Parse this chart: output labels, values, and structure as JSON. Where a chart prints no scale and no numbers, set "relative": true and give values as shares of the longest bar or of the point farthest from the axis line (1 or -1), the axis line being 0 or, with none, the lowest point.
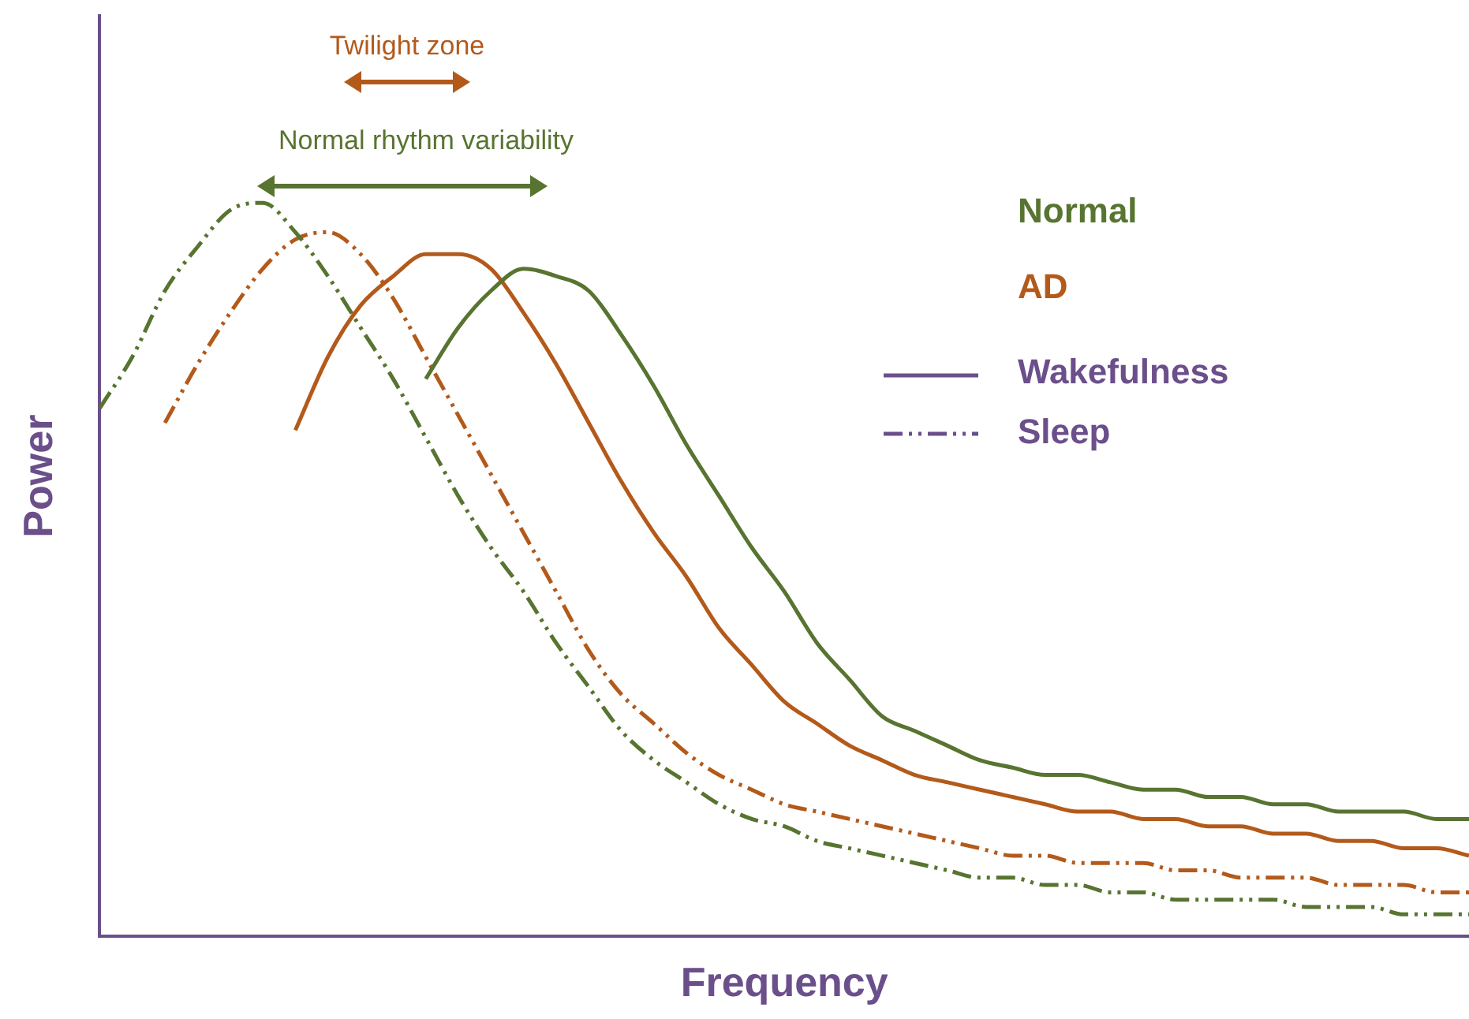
{
  "chart_data": {
    "type": "line",
    "relative": true,
    "xlabel": "Frequency",
    "ylabel": "Power",
    "legend": false,
    "grid": false,
    "marker": "none",
    "categories": [
      null,
      null,
      null,
      null,
      null,
      null,
      null,
      null,
      null,
      null,
      null,
      null,
      null,
      null,
      null,
      null,
      null,
      null,
      null,
      null,
      null,
      null,
      null,
      null,
      null,
      null,
      null,
      null,
      null,
      null,
      null,
      null,
      null,
      null,
      null,
      null,
      null,
      null,
      null,
      null,
      null,
      null,
      null
    ],
    "series": [
      {
        "color": "#577430",
        "line_style": "solid",
        "values": [
          null,
          null,
          null,
          null,
          null,
          null,
          null,
          null,
          null,
          null,
          0.76,
          0.83,
          0.88,
          0.91,
          0.9,
          0.88,
          0.82,
          0.75,
          0.67,
          0.6,
          0.53,
          0.47,
          0.4,
          0.35,
          0.3,
          0.28,
          0.26,
          0.24,
          0.23,
          0.22,
          0.22,
          0.21,
          0.2,
          0.2,
          0.19,
          0.19,
          0.18,
          0.18,
          0.17,
          0.17,
          0.17,
          0.16,
          0.16
        ]
      },
      {
        "color": "#b35a1b",
        "line_style": "solid",
        "values": [
          null,
          null,
          null,
          null,
          null,
          null,
          0.69,
          0.79,
          0.86,
          0.9,
          0.93,
          0.93,
          0.91,
          0.85,
          0.78,
          0.7,
          0.62,
          0.55,
          0.49,
          0.42,
          0.37,
          0.32,
          0.29,
          0.26,
          0.24,
          0.22,
          0.21,
          0.2,
          0.19,
          0.18,
          0.17,
          0.17,
          0.16,
          0.16,
          0.15,
          0.15,
          0.14,
          0.14,
          0.13,
          0.13,
          0.12,
          0.12,
          0.11
        ]
      },
      {
        "color": "#577430",
        "line_style": "dashed",
        "values": [
          0.72,
          0.79,
          0.88,
          0.94,
          0.99,
          1,
          0.96,
          0.9,
          0.83,
          0.76,
          0.68,
          0.6,
          0.53,
          0.47,
          0.4,
          0.34,
          0.28,
          0.24,
          0.21,
          0.18,
          0.16,
          0.15,
          0.13,
          0.12,
          0.11,
          0.1,
          0.09,
          0.08,
          0.08,
          0.07,
          0.07,
          0.06,
          0.06,
          0.05,
          0.05,
          0.05,
          0.05,
          0.04,
          0.04,
          0.04,
          0.03,
          0.03,
          0.03
        ]
      },
      {
        "color": "#b35a1b",
        "line_style": "dashed",
        "values": [
          null,
          null,
          0.7,
          0.78,
          0.85,
          0.91,
          0.95,
          0.96,
          0.93,
          0.87,
          0.79,
          0.71,
          0.63,
          0.55,
          0.47,
          0.39,
          0.33,
          0.29,
          0.25,
          0.22,
          0.2,
          0.18,
          0.17,
          0.16,
          0.15,
          0.14,
          0.13,
          0.12,
          0.11,
          0.11,
          0.1,
          0.1,
          0.1,
          0.09,
          0.09,
          0.08,
          0.08,
          0.08,
          0.07,
          0.07,
          0.07,
          0.06,
          0.06
        ]
      }
    ],
    "annotations": [
      "Twilight zone",
      "Normal rhythm variability",
      "Normal",
      "AD",
      "Wakefulness",
      "Sleep"
    ]
  }
}
